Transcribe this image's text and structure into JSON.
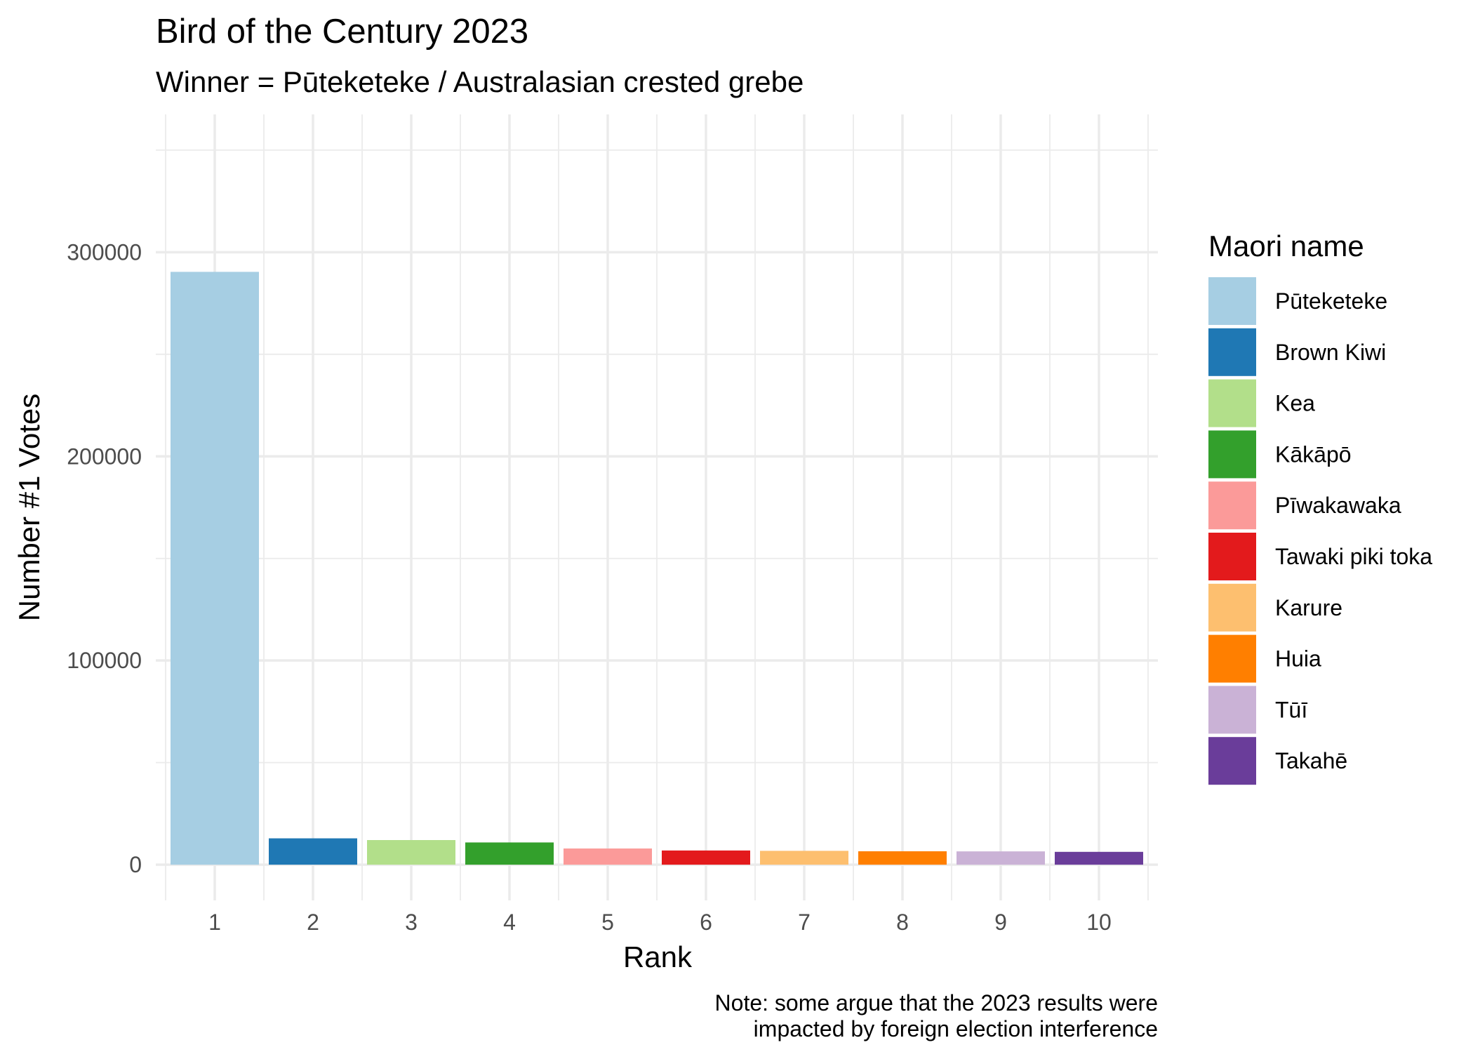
{
  "chart_data": {
    "type": "bar",
    "title": "Bird of the Century 2023",
    "subtitle": "Winner = Pūteketeke / Australasian crested grebe",
    "xlabel": "Rank",
    "ylabel": "Number #1 Votes",
    "caption_lines": [
      "Note: some argue that the 2023 results were",
      "impacted by foreign election interference"
    ],
    "categories": [
      "1",
      "2",
      "3",
      "4",
      "5",
      "6",
      "7",
      "8",
      "9",
      "10"
    ],
    "values": [
      290374,
      12904,
      12060,
      10889,
      7926,
      6951,
      6779,
      6571,
      6515,
      6289
    ],
    "names": [
      "Pūteketeke",
      "Brown Kiwi",
      "Kea",
      "Kākāpō",
      "Pīwakawaka",
      "Tawaki piki toka",
      "Karure",
      "Huia",
      "Tūī",
      "Takahē"
    ],
    "colors": [
      "#a6cee3",
      "#1f78b4",
      "#b2df8a",
      "#33a02c",
      "#fb9a99",
      "#e31a1c",
      "#fdbf6f",
      "#ff7f00",
      "#cab2d6",
      "#6a3d9a"
    ],
    "ylim": [
      -17500,
      367500
    ],
    "yticks": [
      0,
      100000,
      200000,
      300000
    ],
    "ytick_labels": [
      "0",
      "100000",
      "200000",
      "300000"
    ],
    "yminor": [
      50000,
      150000,
      250000,
      350000
    ],
    "legend_title": "Maori name",
    "legend_position": "right",
    "grid": true
  }
}
